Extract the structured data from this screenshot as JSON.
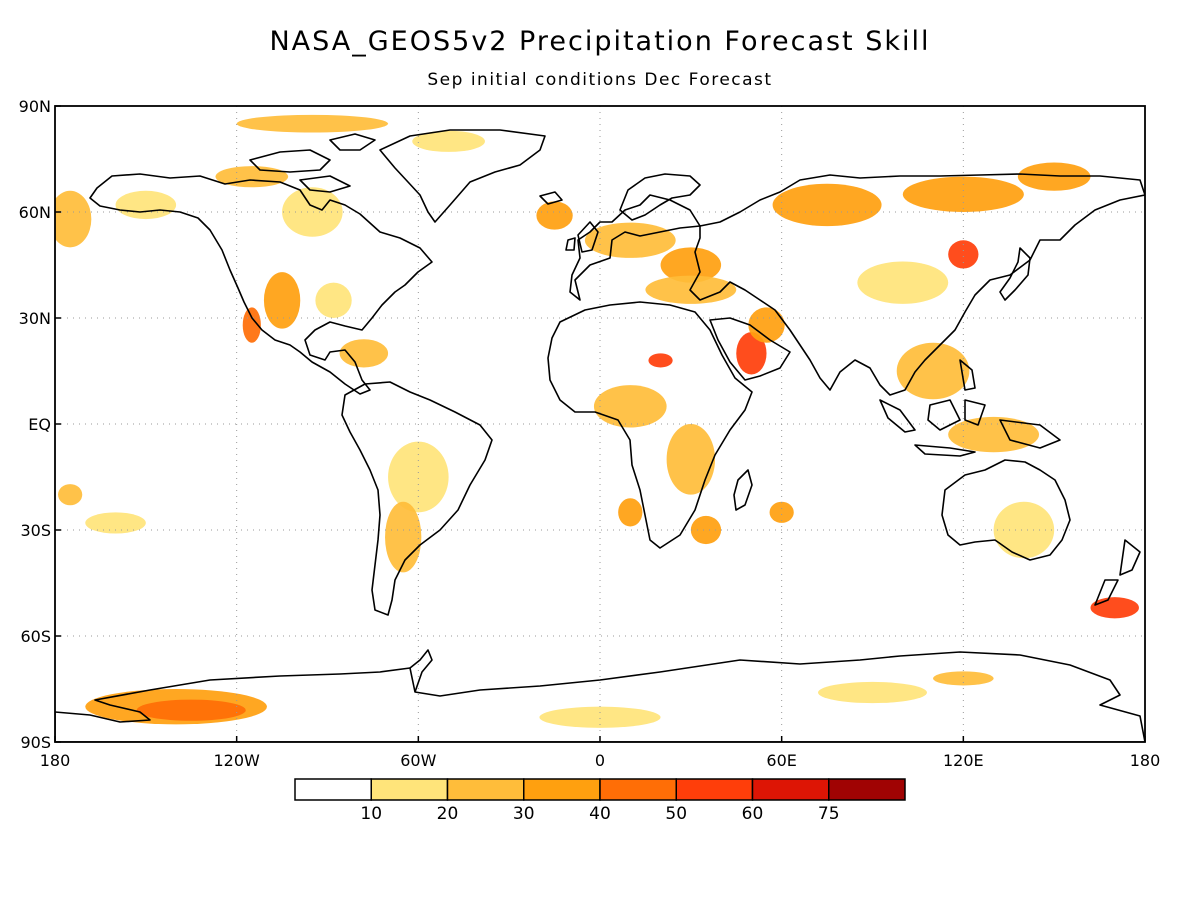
{
  "title": "NASA_GEOS5v2 Precipitation Forecast Skill",
  "subtitle": "Sep initial conditions  Dec Forecast",
  "map": {
    "lon_range": [
      -180,
      180
    ],
    "lat_range": [
      -90,
      90
    ],
    "lat_ticks": [
      {
        "value": 90,
        "label": "90N"
      },
      {
        "value": 60,
        "label": "60N"
      },
      {
        "value": 30,
        "label": "30N"
      },
      {
        "value": 0,
        "label": "EQ"
      },
      {
        "value": -30,
        "label": "30S"
      },
      {
        "value": -60,
        "label": "60S"
      },
      {
        "value": -90,
        "label": "90S"
      }
    ],
    "lon_ticks": [
      {
        "value": -180,
        "label": "180"
      },
      {
        "value": -120,
        "label": "120W"
      },
      {
        "value": -60,
        "label": "60W"
      },
      {
        "value": 0,
        "label": "0"
      },
      {
        "value": 60,
        "label": "60E"
      },
      {
        "value": 120,
        "label": "120E"
      },
      {
        "value": 180,
        "label": "180"
      }
    ],
    "grid": true,
    "projection": "cylindrical equidistant"
  },
  "colorbar": {
    "colors": [
      "#ffffff",
      "#ffe47a",
      "#ffbd3a",
      "#ffa00f",
      "#ff6e06",
      "#ff3e0a",
      "#dd1505",
      "#a00303"
    ],
    "labels": [
      "10",
      "20",
      "30",
      "40",
      "50",
      "60",
      "75"
    ]
  },
  "skill_regions": [
    {
      "lon": -175,
      "lat": 58,
      "rx": 7,
      "ry": 8,
      "level": 2
    },
    {
      "lon": -150,
      "lat": 62,
      "rx": 10,
      "ry": 4,
      "level": 1
    },
    {
      "lon": -115,
      "lat": 70,
      "rx": 12,
      "ry": 3,
      "level": 2
    },
    {
      "lon": -95,
      "lat": 85,
      "rx": 25,
      "ry": 2.5,
      "level": 2
    },
    {
      "lon": -50,
      "lat": 80,
      "rx": 12,
      "ry": 3,
      "level": 1
    },
    {
      "lon": -95,
      "lat": 60,
      "rx": 10,
      "ry": 7,
      "level": 1
    },
    {
      "lon": -105,
      "lat": 35,
      "rx": 6,
      "ry": 8,
      "level": 3
    },
    {
      "lon": -115,
      "lat": 28,
      "rx": 3,
      "ry": 5,
      "level": 4
    },
    {
      "lon": -88,
      "lat": 35,
      "rx": 6,
      "ry": 5,
      "level": 1
    },
    {
      "lon": -78,
      "lat": 20,
      "rx": 8,
      "ry": 4,
      "level": 2
    },
    {
      "lon": -15,
      "lat": 59,
      "rx": 6,
      "ry": 4,
      "level": 3
    },
    {
      "lon": 10,
      "lat": 52,
      "rx": 15,
      "ry": 5,
      "level": 2
    },
    {
      "lon": 30,
      "lat": 45,
      "rx": 10,
      "ry": 5,
      "level": 3
    },
    {
      "lon": 30,
      "lat": 38,
      "rx": 15,
      "ry": 4,
      "level": 2
    },
    {
      "lon": 50,
      "lat": 20,
      "rx": 5,
      "ry": 6,
      "level": 5
    },
    {
      "lon": 55,
      "lat": 28,
      "rx": 6,
      "ry": 5,
      "level": 3
    },
    {
      "lon": 20,
      "lat": 18,
      "rx": 4,
      "ry": 2,
      "level": 5
    },
    {
      "lon": 10,
      "lat": 5,
      "rx": 12,
      "ry": 6,
      "level": 2
    },
    {
      "lon": 30,
      "lat": -10,
      "rx": 8,
      "ry": 10,
      "level": 2
    },
    {
      "lon": 35,
      "lat": -30,
      "rx": 5,
      "ry": 4,
      "level": 3
    },
    {
      "lon": 10,
      "lat": -25,
      "rx": 4,
      "ry": 4,
      "level": 3
    },
    {
      "lon": 60,
      "lat": -25,
      "rx": 4,
      "ry": 3,
      "level": 3
    },
    {
      "lon": 75,
      "lat": 62,
      "rx": 18,
      "ry": 6,
      "level": 3
    },
    {
      "lon": 120,
      "lat": 65,
      "rx": 20,
      "ry": 5,
      "level": 3
    },
    {
      "lon": 120,
      "lat": 48,
      "rx": 5,
      "ry": 4,
      "level": 5
    },
    {
      "lon": 100,
      "lat": 40,
      "rx": 15,
      "ry": 6,
      "level": 1
    },
    {
      "lon": 110,
      "lat": 15,
      "rx": 12,
      "ry": 8,
      "level": 2
    },
    {
      "lon": 130,
      "lat": -3,
      "rx": 15,
      "ry": 5,
      "level": 2
    },
    {
      "lon": 150,
      "lat": 70,
      "rx": 12,
      "ry": 4,
      "level": 3
    },
    {
      "lon": 140,
      "lat": -30,
      "rx": 10,
      "ry": 8,
      "level": 1
    },
    {
      "lon": 170,
      "lat": -52,
      "rx": 8,
      "ry": 3,
      "level": 5
    },
    {
      "lon": -60,
      "lat": -15,
      "rx": 10,
      "ry": 10,
      "level": 1
    },
    {
      "lon": -65,
      "lat": -32,
      "rx": 6,
      "ry": 10,
      "level": 2
    },
    {
      "lon": -160,
      "lat": -28,
      "rx": 10,
      "ry": 3,
      "level": 1
    },
    {
      "lon": -175,
      "lat": -20,
      "rx": 4,
      "ry": 3,
      "level": 2
    },
    {
      "lon": -140,
      "lat": -80,
      "rx": 30,
      "ry": 5,
      "level": 3
    },
    {
      "lon": -135,
      "lat": -81,
      "rx": 18,
      "ry": 3,
      "level": 4
    },
    {
      "lon": 0,
      "lat": -83,
      "rx": 20,
      "ry": 3,
      "level": 1
    },
    {
      "lon": 120,
      "lat": -72,
      "rx": 10,
      "ry": 2,
      "level": 2
    },
    {
      "lon": 90,
      "lat": -76,
      "rx": 18,
      "ry": 3,
      "level": 1
    }
  ]
}
